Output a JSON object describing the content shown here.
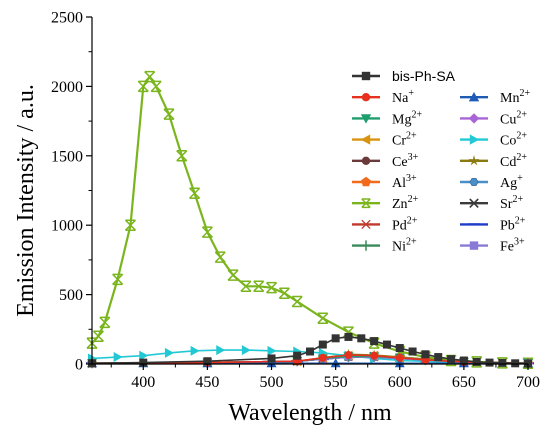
{
  "chart_data": {
    "type": "line",
    "xlabel": "Wavelength / nm",
    "ylabel": "Emission Intensity / a.u.",
    "xlim": [
      360,
      700
    ],
    "ylim": [
      0,
      2500
    ],
    "xticks": [
      400,
      450,
      500,
      550,
      600,
      650,
      700
    ],
    "yticks": [
      0,
      500,
      1000,
      1500,
      2000,
      2500
    ],
    "legend_position": "top-right",
    "legend_columns": 2,
    "series": [
      {
        "id": "bis",
        "name": "bis-Ph-SA",
        "color": "#333333",
        "marker": "square",
        "x": [
          360,
          400,
          450,
          500,
          520,
          530,
          540,
          550,
          560,
          570,
          580,
          590,
          600,
          610,
          620,
          630,
          640,
          650,
          660,
          670,
          680,
          690,
          700
        ],
        "y": [
          5,
          10,
          20,
          40,
          60,
          90,
          140,
          185,
          195,
          185,
          165,
          140,
          115,
          90,
          70,
          50,
          35,
          25,
          15,
          10,
          8,
          5,
          3
        ]
      },
      {
        "id": "na",
        "name": "Na",
        "sup": "+",
        "color": "#e8301f",
        "marker": "circle",
        "x": [
          360,
          450,
          520,
          540,
          560,
          580,
          600,
          620,
          650,
          700
        ],
        "y": [
          5,
          10,
          20,
          45,
          65,
          60,
          45,
          30,
          15,
          5
        ]
      },
      {
        "id": "mn",
        "name": "Mn",
        "sup": "2+",
        "color": "#1f5bb5",
        "marker": "triangle-up",
        "x": [
          360,
          400,
          450,
          500,
          550,
          600,
          650,
          700
        ],
        "y": [
          5,
          5,
          5,
          5,
          5,
          5,
          5,
          5
        ]
      },
      {
        "id": "mg",
        "name": "Mg",
        "sup": "2+",
        "color": "#1f9e6e",
        "marker": "triangle-down",
        "x": [
          360,
          450,
          520,
          540,
          560,
          580,
          600,
          620,
          650,
          700
        ],
        "y": [
          5,
          10,
          20,
          40,
          55,
          55,
          45,
          30,
          15,
          5
        ]
      },
      {
        "id": "cu",
        "name": "Cu",
        "sup": "2+",
        "color": "#a865d6",
        "marker": "diamond",
        "x": [
          360,
          450,
          520,
          540,
          560,
          580,
          600,
          620,
          650,
          700
        ],
        "y": [
          5,
          10,
          20,
          35,
          50,
          50,
          40,
          28,
          15,
          5
        ]
      },
      {
        "id": "cr",
        "name": "Cr",
        "sup": "2+",
        "color": "#d9940f",
        "marker": "triangle-left",
        "x": [
          360,
          450,
          520,
          540,
          560,
          580,
          600,
          620,
          650,
          700
        ],
        "y": [
          5,
          10,
          20,
          40,
          60,
          60,
          45,
          30,
          15,
          5
        ]
      },
      {
        "id": "co",
        "name": "Co",
        "sup": "2+",
        "color": "#22c9d4",
        "marker": "triangle-right",
        "x": [
          360,
          380,
          400,
          420,
          440,
          460,
          480,
          500,
          520,
          540,
          560,
          580,
          600,
          650,
          700
        ],
        "y": [
          40,
          50,
          60,
          80,
          95,
          100,
          100,
          95,
          90,
          80,
          60,
          40,
          25,
          10,
          5
        ]
      },
      {
        "id": "ce",
        "name": "Ce",
        "sup": "3+",
        "color": "#6b3a3a",
        "marker": "circle",
        "x": [
          360,
          450,
          520,
          540,
          560,
          580,
          600,
          620,
          650,
          700
        ],
        "y": [
          5,
          10,
          20,
          40,
          55,
          55,
          45,
          30,
          15,
          5
        ]
      },
      {
        "id": "cd",
        "name": "Cd",
        "sup": "2+",
        "color": "#8a7a10",
        "marker": "star",
        "x": [
          360,
          450,
          520,
          540,
          560,
          580,
          600,
          620,
          650,
          700
        ],
        "y": [
          5,
          10,
          20,
          45,
          70,
          65,
          50,
          35,
          15,
          5
        ]
      },
      {
        "id": "al",
        "name": "Al",
        "sup": "3+",
        "color": "#f26a1b",
        "marker": "pentagon",
        "x": [
          360,
          450,
          520,
          540,
          560,
          580,
          600,
          620,
          650,
          700
        ],
        "y": [
          5,
          10,
          20,
          40,
          55,
          55,
          45,
          30,
          15,
          5
        ]
      },
      {
        "id": "ag",
        "name": "Ag",
        "sup": "+",
        "color": "#4a90c8",
        "marker": "hexagon",
        "x": [
          360,
          450,
          520,
          540,
          560,
          580,
          600,
          620,
          650,
          700
        ],
        "y": [
          5,
          10,
          20,
          35,
          50,
          50,
          40,
          28,
          15,
          5
        ]
      },
      {
        "id": "zn",
        "name": "Zn",
        "sup": "2+",
        "color": "#7ab51d",
        "marker": "x-box",
        "x": [
          360,
          365,
          370,
          380,
          390,
          400,
          405,
          410,
          420,
          430,
          440,
          450,
          460,
          470,
          480,
          490,
          500,
          510,
          520,
          540,
          560,
          580,
          600,
          620,
          640,
          660,
          680,
          700
        ],
        "y": [
          150,
          200,
          300,
          610,
          1000,
          2000,
          2070,
          2000,
          1800,
          1500,
          1230,
          950,
          770,
          640,
          560,
          560,
          550,
          510,
          450,
          330,
          230,
          150,
          90,
          50,
          25,
          15,
          8,
          5
        ]
      },
      {
        "id": "sr",
        "name": "Sr",
        "sup": "2+",
        "color": "#3a3a3a",
        "marker": "x",
        "x": [
          360,
          450,
          520,
          540,
          560,
          580,
          600,
          620,
          650,
          700
        ],
        "y": [
          5,
          10,
          20,
          40,
          55,
          55,
          45,
          30,
          15,
          5
        ]
      },
      {
        "id": "pd",
        "name": "Pd",
        "sup": "2+",
        "color": "#c0392b",
        "marker": "asterisk",
        "x": [
          360,
          450,
          520,
          540,
          560,
          580,
          600,
          620,
          650,
          700
        ],
        "y": [
          5,
          10,
          20,
          40,
          55,
          55,
          45,
          30,
          15,
          5
        ]
      },
      {
        "id": "pb",
        "name": "Pb",
        "sup": "2+",
        "color": "#1f3cc8",
        "marker": "line",
        "x": [
          360,
          450,
          520,
          540,
          560,
          580,
          600,
          620,
          650,
          700
        ],
        "y": [
          5,
          10,
          20,
          35,
          50,
          50,
          40,
          28,
          15,
          5
        ]
      },
      {
        "id": "ni",
        "name": "Ni",
        "sup": "2+",
        "color": "#3a8a5a",
        "marker": "plus",
        "x": [
          360,
          450,
          520,
          540,
          560,
          580,
          600,
          620,
          650,
          700
        ],
        "y": [
          5,
          10,
          20,
          35,
          50,
          50,
          40,
          28,
          15,
          5
        ]
      },
      {
        "id": "fe",
        "name": "Fe",
        "sup": "3+",
        "color": "#8a7ad8",
        "marker": "square",
        "x": [
          360,
          450,
          520,
          540,
          560,
          580,
          600,
          620,
          650,
          700
        ],
        "y": [
          5,
          10,
          20,
          35,
          50,
          50,
          40,
          28,
          15,
          5
        ]
      }
    ]
  }
}
